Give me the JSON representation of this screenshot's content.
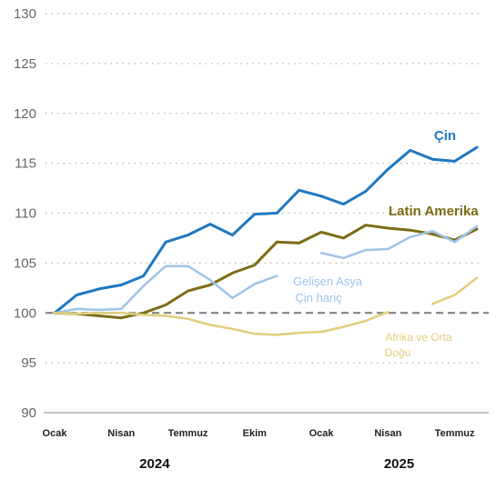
{
  "chart_data": {
    "type": "line",
    "title": "",
    "xlabel": "",
    "ylabel": "",
    "ylim": [
      90,
      130
    ],
    "yticks": [
      90,
      95,
      100,
      105,
      110,
      115,
      120,
      125,
      130
    ],
    "grid": "horizontal dotted",
    "reference_line": {
      "y": 100,
      "style": "dashed",
      "color": "#7a7a7a"
    },
    "x_tick_labels": [
      {
        "label": "Ocak",
        "index": 0
      },
      {
        "label": "Nisan",
        "index": 3
      },
      {
        "label": "Temmuz",
        "index": 6
      },
      {
        "label": "Ekim",
        "index": 9
      },
      {
        "label": "Ocak",
        "index": 12
      },
      {
        "label": "Nisan",
        "index": 15
      },
      {
        "label": "Temmuz",
        "index": 18
      }
    ],
    "years": [
      {
        "label": "2024",
        "index": 4.5
      },
      {
        "label": "2025",
        "index": 15.5
      }
    ],
    "series": [
      {
        "name": "Çin",
        "color": "#1f78c1",
        "width": 3,
        "values": [
          100,
          101.8,
          102.4,
          102.8,
          103.7,
          107.1,
          107.8,
          108.9,
          107.8,
          109.9,
          110.0,
          112.3,
          111.7,
          110.9,
          112.2,
          114.4,
          116.3,
          115.4,
          115.2,
          116.6
        ]
      },
      {
        "name": "Latin Amerika",
        "color": "#7d6c16",
        "width": 3,
        "values": [
          100,
          99.9,
          99.7,
          99.5,
          100.0,
          100.8,
          102.2,
          102.8,
          104.0,
          104.8,
          107.1,
          107.0,
          108.1,
          107.5,
          108.8,
          108.5,
          108.3,
          107.9,
          107.3,
          108.4
        ]
      },
      {
        "name": "Gelişen Asya Çin hariç",
        "color": "#9fc4e7",
        "width": 2.5,
        "values": [
          100,
          100.4,
          100.3,
          100.4,
          102.7,
          104.7,
          104.7,
          103.3,
          101.5,
          102.9,
          103.7,
          null,
          106.0,
          105.5,
          106.3,
          106.4,
          107.6,
          108.2,
          107.1,
          108.7
        ]
      },
      {
        "name": "Afrika ve Orta Doğu",
        "color": "#e1cd7c",
        "width": 2.5,
        "values": [
          100,
          99.9,
          100.0,
          100.0,
          99.8,
          99.7,
          99.4,
          98.8,
          98.4,
          97.9,
          97.8,
          98.0,
          98.1,
          98.6,
          99.2,
          100.1,
          null,
          100.9,
          101.8,
          103.5
        ]
      }
    ],
    "annotations": [
      {
        "text": "Çin",
        "series": 0,
        "color": "#1f78c1"
      },
      {
        "text": "Latin Amerika",
        "series": 1,
        "color": "#7d6c16"
      },
      {
        "text": "Gelişen Asya",
        "series": 2,
        "color": "#9fc4e7"
      },
      {
        "text": "Çin hariç",
        "series": 2,
        "color": "#9fc4e7"
      },
      {
        "text": "Afrika ve Orta",
        "series": 3,
        "color": "#e1cd7c"
      },
      {
        "text": "Doğu",
        "series": 3,
        "color": "#e1cd7c"
      }
    ]
  }
}
